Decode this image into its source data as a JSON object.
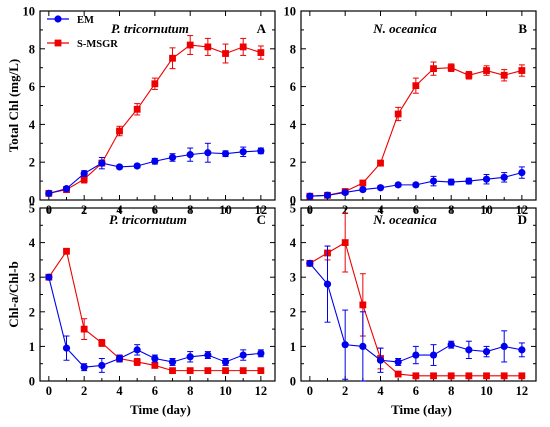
{
  "colors": {
    "em": "#0000ee",
    "smsgr": "#ee0000"
  },
  "chart_data": [
    {
      "type": "line",
      "panel": "A",
      "title": "P. tricornutum",
      "ylabel": "Total Chl  (mg/L)",
      "xlabel": "",
      "xlim": [
        -0.5,
        12.8
      ],
      "ylim": [
        0,
        10
      ],
      "xticks": [
        0,
        2,
        4,
        6,
        8,
        10,
        12
      ],
      "yticks": [
        0,
        2,
        4,
        6,
        8,
        10
      ],
      "legend": "top-left",
      "x": [
        0,
        1,
        2,
        3,
        4,
        5,
        6,
        7,
        8,
        9,
        10,
        11,
        12
      ],
      "series": [
        {
          "name": "EM",
          "color": "#0000ee",
          "marker": "circle",
          "values": [
            0.35,
            0.6,
            1.4,
            1.95,
            1.75,
            1.8,
            2.05,
            2.25,
            2.4,
            2.5,
            2.45,
            2.55,
            2.6
          ],
          "errors": [
            0.05,
            0.1,
            0.15,
            0.3,
            0.1,
            0.1,
            0.15,
            0.2,
            0.35,
            0.5,
            0.15,
            0.25,
            0.15
          ]
        },
        {
          "name": "S-MSGR",
          "color": "#ee0000",
          "marker": "square",
          "values": [
            0.35,
            0.55,
            1.1,
            1.95,
            3.65,
            4.8,
            6.15,
            7.5,
            8.2,
            8.1,
            7.75,
            8.1,
            7.8
          ],
          "errors": [
            0.05,
            0.1,
            0.2,
            0.15,
            0.25,
            0.3,
            0.3,
            0.55,
            0.5,
            0.45,
            0.5,
            0.45,
            0.35
          ]
        }
      ]
    },
    {
      "type": "line",
      "panel": "B",
      "title": "N. oceanica",
      "ylabel": "",
      "xlabel": "",
      "xlim": [
        -0.5,
        12.8
      ],
      "ylim": [
        0,
        10
      ],
      "xticks": [
        0,
        2,
        4,
        6,
        8,
        10,
        12
      ],
      "yticks": [
        0,
        2,
        4,
        6,
        8,
        10
      ],
      "x": [
        0,
        1,
        2,
        3,
        4,
        5,
        6,
        7,
        8,
        9,
        10,
        11,
        12
      ],
      "series": [
        {
          "name": "EM",
          "color": "#0000ee",
          "marker": "circle",
          "values": [
            0.2,
            0.25,
            0.4,
            0.55,
            0.65,
            0.8,
            0.8,
            1.0,
            0.95,
            1.0,
            1.1,
            1.2,
            1.45
          ],
          "errors": [
            0.05,
            0.05,
            0.05,
            0.1,
            0.1,
            0.1,
            0.1,
            0.25,
            0.15,
            0.15,
            0.25,
            0.25,
            0.3
          ]
        },
        {
          "name": "S-MSGR",
          "color": "#ee0000",
          "marker": "square",
          "values": [
            0.2,
            0.25,
            0.45,
            0.9,
            1.95,
            4.55,
            6.05,
            6.95,
            7.0,
            6.6,
            6.85,
            6.6,
            6.85
          ],
          "errors": [
            0.05,
            0.05,
            0.1,
            0.1,
            0.15,
            0.35,
            0.4,
            0.35,
            0.2,
            0.2,
            0.25,
            0.3,
            0.3
          ]
        }
      ]
    },
    {
      "type": "line",
      "panel": "C",
      "title": "P. tricornutum",
      "ylabel": "Chl-a/Chl-b",
      "xlabel": "Time (day)",
      "xlim": [
        -0.5,
        12.8
      ],
      "ylim": [
        0,
        5
      ],
      "xticks": [
        0,
        2,
        4,
        6,
        8,
        10,
        12
      ],
      "yticks": [
        0,
        1,
        2,
        3,
        4,
        5
      ],
      "x": [
        0,
        1,
        2,
        3,
        4,
        5,
        6,
        7,
        8,
        9,
        10,
        11,
        12
      ],
      "series": [
        {
          "name": "EM",
          "color": "#0000ee",
          "marker": "circle",
          "values": [
            3.0,
            0.95,
            0.4,
            0.45,
            0.65,
            0.9,
            0.65,
            0.55,
            0.7,
            0.75,
            0.55,
            0.75,
            0.8
          ],
          "errors": [
            0.05,
            0.35,
            0.1,
            0.2,
            0.1,
            0.15,
            0.1,
            0.1,
            0.15,
            0.1,
            0.1,
            0.15,
            0.1
          ]
        },
        {
          "name": "S-MSGR",
          "color": "#ee0000",
          "marker": "square",
          "values": [
            3.0,
            3.75,
            1.5,
            1.1,
            0.65,
            0.55,
            0.45,
            0.3,
            0.3,
            0.3,
            0.3,
            0.3,
            0.3
          ],
          "errors": [
            0.05,
            0.05,
            0.3,
            0.1,
            0.1,
            0.1,
            0.05,
            0.05,
            0.05,
            0.05,
            0.05,
            0.05,
            0.05
          ]
        }
      ]
    },
    {
      "type": "line",
      "panel": "D",
      "title": "N. oceanica",
      "ylabel": "",
      "xlabel": "Time (day)",
      "xlim": [
        -0.5,
        12.8
      ],
      "ylim": [
        0,
        5
      ],
      "xticks": [
        0,
        2,
        4,
        6,
        8,
        10,
        12
      ],
      "yticks": [
        0,
        1,
        2,
        3,
        4,
        5
      ],
      "x": [
        0,
        1,
        2,
        3,
        4,
        5,
        6,
        7,
        8,
        9,
        10,
        11,
        12
      ],
      "series": [
        {
          "name": "EM",
          "color": "#0000ee",
          "marker": "circle",
          "values": [
            3.4,
            2.8,
            1.05,
            1.0,
            0.6,
            0.55,
            0.75,
            0.75,
            1.05,
            0.9,
            0.85,
            1.0,
            0.9
          ],
          "errors": [
            0.05,
            1.1,
            1.0,
            1.0,
            0.35,
            0.1,
            0.25,
            0.3,
            0.1,
            0.25,
            0.15,
            0.45,
            0.2
          ]
        },
        {
          "name": "S-MSGR",
          "color": "#ee0000",
          "marker": "square",
          "values": [
            3.4,
            3.7,
            4.0,
            2.2,
            0.65,
            0.2,
            0.15,
            0.15,
            0.15,
            0.15,
            0.15,
            0.15,
            0.15
          ],
          "errors": [
            0.05,
            0.2,
            0.85,
            0.9,
            0.3,
            0.05,
            0.05,
            0.05,
            0.05,
            0.05,
            0.05,
            0.05,
            0.05
          ]
        }
      ]
    }
  ]
}
